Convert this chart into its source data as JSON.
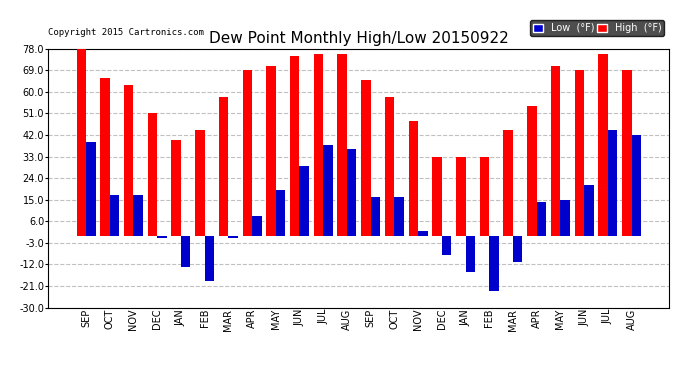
{
  "title": "Dew Point Monthly High/Low 20150922",
  "copyright": "Copyright 2015 Cartronics.com",
  "months": [
    "SEP",
    "OCT",
    "NOV",
    "DEC",
    "JAN",
    "FEB",
    "MAR",
    "APR",
    "MAY",
    "JUN",
    "JUL",
    "AUG",
    "SEP",
    "OCT",
    "NOV",
    "DEC",
    "JAN",
    "FEB",
    "MAR",
    "APR",
    "MAY",
    "JUN",
    "JUL",
    "AUG"
  ],
  "high": [
    78,
    66,
    63,
    51,
    40,
    44,
    58,
    69,
    71,
    75,
    76,
    76,
    65,
    58,
    48,
    33,
    33,
    33,
    44,
    54,
    71,
    69,
    76,
    69
  ],
  "low": [
    39,
    17,
    17,
    -1,
    -13,
    -19,
    -1,
    8,
    19,
    29,
    38,
    36,
    16,
    16,
    2,
    -8,
    -15,
    -23,
    -11,
    14,
    15,
    21,
    44,
    42
  ],
  "ylim": [
    -30,
    78
  ],
  "yticks": [
    -30.0,
    -21.0,
    -12.0,
    -3.0,
    6.0,
    15.0,
    24.0,
    33.0,
    42.0,
    51.0,
    60.0,
    69.0,
    78.0
  ],
  "bar_width": 0.4,
  "high_color": "#ff0000",
  "low_color": "#0000cc",
  "bg_color": "#ffffff",
  "grid_color": "#c0c0c0",
  "title_fontsize": 11,
  "label_fontsize": 7,
  "legend_low_label": "Low  (°F)",
  "legend_high_label": "High  (°F)"
}
